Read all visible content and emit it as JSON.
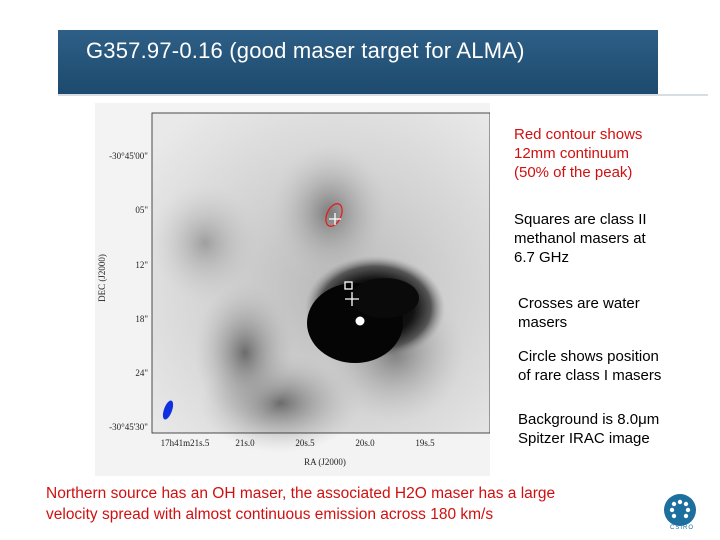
{
  "slide": {
    "title": "G357.97-0.16 (good maser target for ALMA)",
    "notes": [
      {
        "text": "Red contour shows 12mm continuum (50% of the peak)",
        "lines": [
          "Red contour shows",
          "12mm continuum",
          "(50% of the peak)"
        ],
        "color": "#d01010"
      },
      {
        "text": "Squares are class II methanol masers at 6.7 GHz",
        "lines": [
          "Squares are class II",
          "methanol masers at",
          "6.7 GHz"
        ],
        "color": "#000000"
      },
      {
        "text": "Crosses are water masers",
        "lines": [
          "Crosses are water",
          "masers"
        ],
        "color": "#000000"
      },
      {
        "text": "Circle shows position of rare class I masers",
        "lines": [
          "Circle shows position",
          "of rare class I masers"
        ],
        "color": "#000000"
      },
      {
        "text": "Background is 8.0μm Spitzer IRAC image",
        "lines": [
          "Background is 8.0μm",
          "Spitzer IRAC image"
        ],
        "color": "#000000"
      }
    ],
    "bottom_lines": [
      "Northern source has an OH maser, the associated H2O maser has a large",
      "velocity spread with almost continuous emission across 180 km/s"
    ],
    "accent_color": "#1d4a6e",
    "logo_text": "CSIRO"
  },
  "figure": {
    "ylabel": "DEC (J2000)",
    "xlabel": "RA (J2000)",
    "y_ticks": [
      "-30°45'00\"",
      "05\"",
      "12\"",
      "18\"",
      "24\"",
      "-30°45'30\""
    ],
    "x_ticks": [
      "17h41m21s.5",
      "21s.0",
      "20s.5",
      "20s.0",
      "19s.5"
    ]
  }
}
